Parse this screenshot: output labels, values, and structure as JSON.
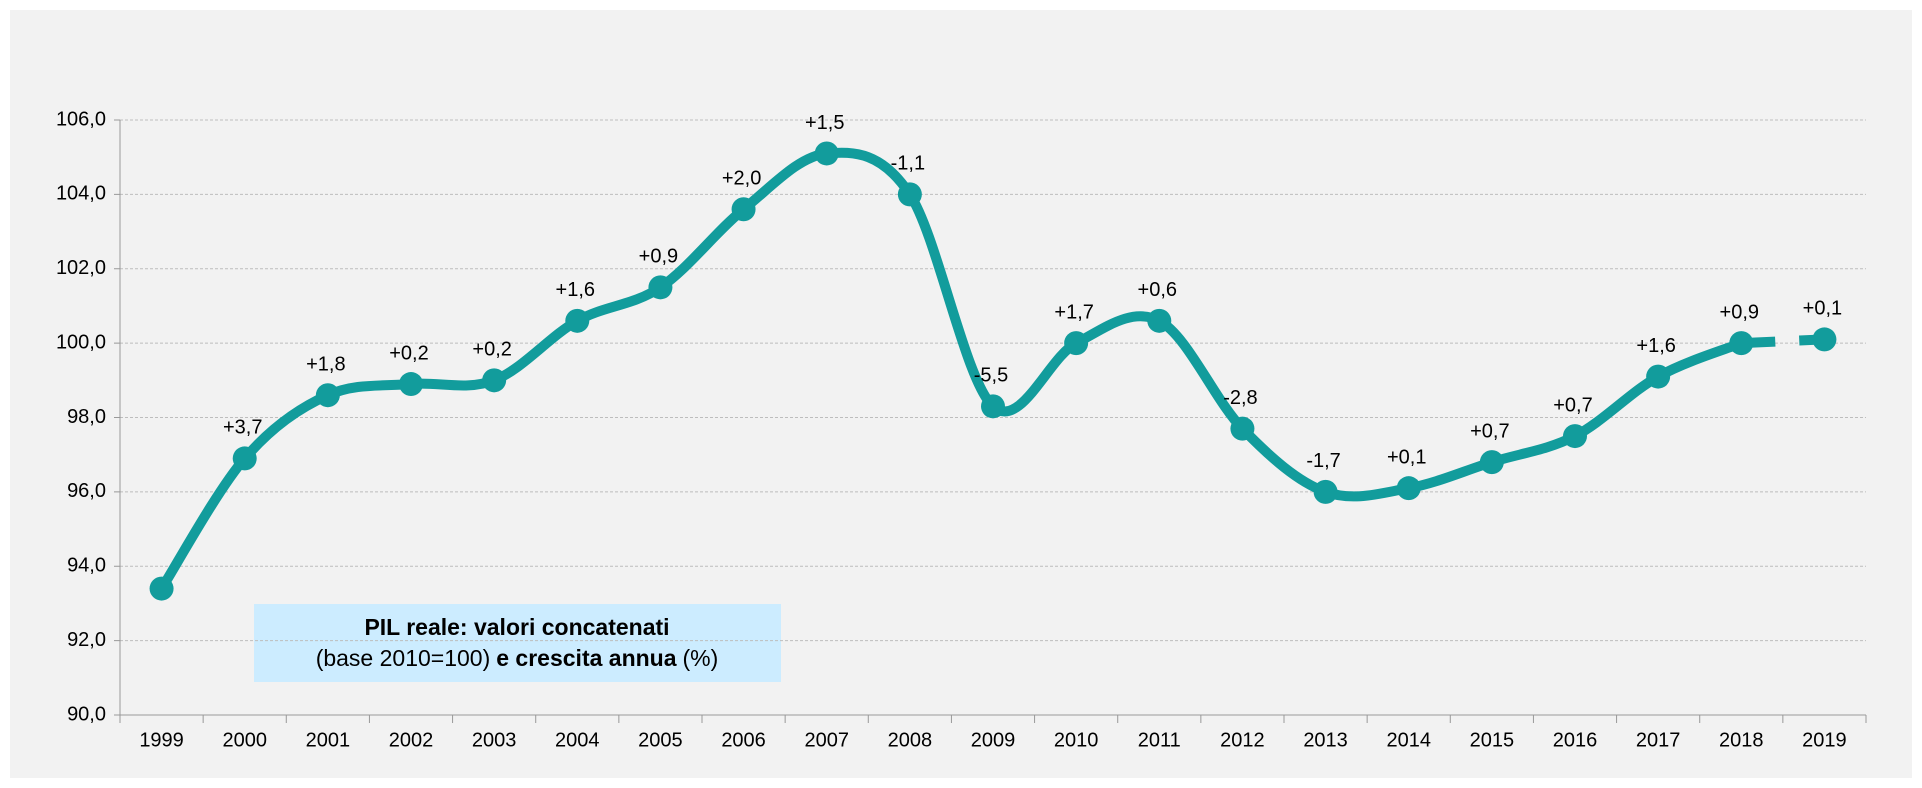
{
  "chart_data": {
    "type": "line",
    "title": "PIL reale: valori concatenati",
    "subtitle": [
      "(base 2010=100)",
      "e crescita annua",
      "(%)"
    ],
    "categories": [
      "1999",
      "2000",
      "2001",
      "2002",
      "2003",
      "2004",
      "2005",
      "2006",
      "2007",
      "2008",
      "2009",
      "2010",
      "2011",
      "2012",
      "2013",
      "2014",
      "2015",
      "2016",
      "2017",
      "2018",
      "2019"
    ],
    "series": [
      {
        "color": "#129c9c",
        "values": [
          93.4,
          96.9,
          98.6,
          98.9,
          99.0,
          100.6,
          101.5,
          103.6,
          105.1,
          104.0,
          98.3,
          100.0,
          100.6,
          97.7,
          96.0,
          96.1,
          96.8,
          97.5,
          99.1,
          100.0,
          100.1
        ]
      }
    ],
    "annotations": [
      null,
      "+3,7",
      "+1,8",
      "+0,2",
      "+0,2",
      "+1,6",
      "+0,9",
      "+2,0",
      "+1,5",
      "-1,1",
      "-5,5",
      "+1,7",
      "+0,6",
      "-2,8",
      "-1,7",
      "+0,1",
      "+0,7",
      "+0,7",
      "+1,6",
      "+0,9",
      "+0,1"
    ],
    "ylim": [
      90,
      106
    ],
    "yticks": [
      {
        "value": 90,
        "label": "90,0"
      },
      {
        "value": 92,
        "label": "92,0"
      },
      {
        "value": 94,
        "label": "94,0"
      },
      {
        "value": 96,
        "label": "96,0"
      },
      {
        "value": 98,
        "label": "98,0"
      },
      {
        "value": 100,
        "label": "100,0"
      },
      {
        "value": 102,
        "label": "102,0"
      },
      {
        "value": 104,
        "label": "104,0"
      },
      {
        "value": 106,
        "label": "106,0"
      }
    ],
    "grid": true
  }
}
